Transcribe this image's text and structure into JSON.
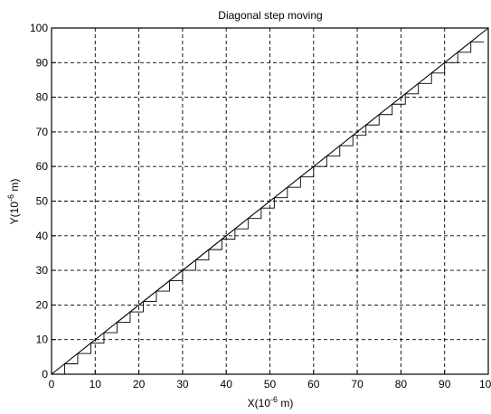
{
  "chart_data": {
    "type": "line",
    "title": "Diagonal step moving",
    "xlabel": {
      "base": "X(10",
      "exp": "-6",
      "unit": " m)"
    },
    "ylabel": {
      "base": "Y(10",
      "exp": "-6",
      "unit": " m)"
    },
    "xlim": [
      0,
      100
    ],
    "ylim": [
      0,
      100
    ],
    "xticks": [
      0,
      10,
      20,
      30,
      40,
      50,
      60,
      70,
      80,
      90,
      100
    ],
    "yticks": [
      0,
      10,
      20,
      30,
      40,
      50,
      60,
      70,
      80,
      90,
      100
    ],
    "grid": true,
    "grid_style": "dashed",
    "series": [
      {
        "style": "solid",
        "x": [
          0,
          100
        ],
        "y": [
          0,
          100
        ]
      },
      {
        "style": "step",
        "step_size": 3,
        "x": [
          0,
          3,
          3,
          6,
          6,
          9,
          9,
          12,
          12,
          15,
          15,
          18,
          18,
          21,
          21,
          24,
          24,
          27,
          27,
          30,
          30,
          33,
          33,
          36,
          36,
          39,
          39,
          42,
          42,
          45,
          45,
          48,
          48,
          51,
          51,
          54,
          54,
          57,
          57,
          60,
          60,
          63,
          63,
          66,
          66,
          69,
          69,
          72,
          72,
          75,
          75,
          78,
          78,
          81,
          81,
          84,
          84,
          87,
          87,
          90,
          90,
          93,
          93,
          96,
          96,
          99
        ],
        "y": [
          0,
          0,
          3,
          3,
          6,
          6,
          9,
          9,
          12,
          12,
          15,
          15,
          18,
          18,
          21,
          21,
          24,
          24,
          27,
          27,
          30,
          30,
          33,
          33,
          36,
          36,
          39,
          39,
          42,
          42,
          45,
          45,
          48,
          48,
          51,
          51,
          54,
          54,
          57,
          57,
          60,
          60,
          63,
          63,
          66,
          66,
          69,
          69,
          72,
          72,
          75,
          75,
          78,
          78,
          81,
          81,
          84,
          84,
          87,
          87,
          90,
          90,
          93,
          93,
          96,
          96
        ]
      }
    ]
  }
}
